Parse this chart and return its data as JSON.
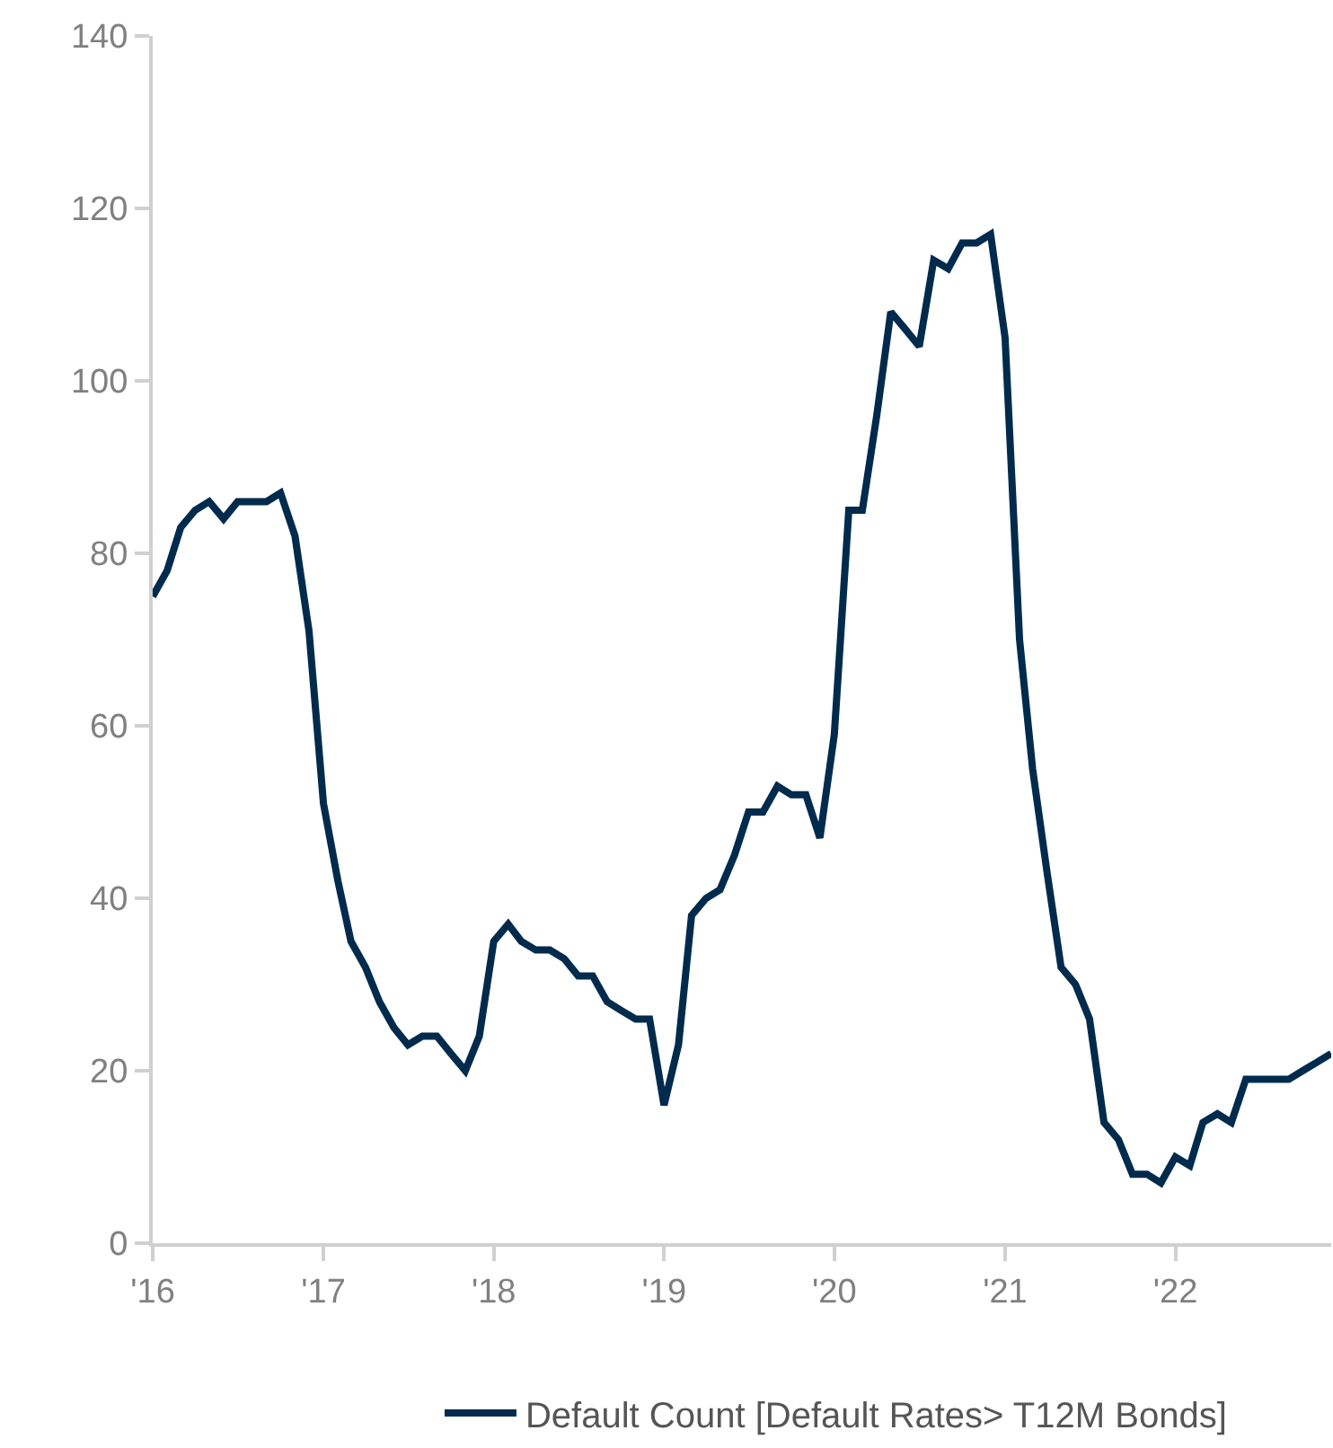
{
  "chart_data": {
    "type": "line",
    "x": [
      "2016-01",
      "2016-02",
      "2016-03",
      "2016-04",
      "2016-05",
      "2016-06",
      "2016-07",
      "2016-08",
      "2016-09",
      "2016-10",
      "2016-11",
      "2016-12",
      "2017-01",
      "2017-02",
      "2017-03",
      "2017-04",
      "2017-05",
      "2017-06",
      "2017-07",
      "2017-08",
      "2017-09",
      "2017-10",
      "2017-11",
      "2017-12",
      "2018-01",
      "2018-02",
      "2018-03",
      "2018-04",
      "2018-05",
      "2018-06",
      "2018-07",
      "2018-08",
      "2018-09",
      "2018-10",
      "2018-11",
      "2018-12",
      "2019-01",
      "2019-02",
      "2019-03",
      "2019-04",
      "2019-05",
      "2019-06",
      "2019-07",
      "2019-08",
      "2019-09",
      "2019-10",
      "2019-11",
      "2019-12",
      "2020-01",
      "2020-02",
      "2020-03",
      "2020-04",
      "2020-05",
      "2020-06",
      "2020-07",
      "2020-08",
      "2020-09",
      "2020-10",
      "2020-11",
      "2020-12",
      "2021-01",
      "2021-02",
      "2021-03",
      "2021-04",
      "2021-05",
      "2021-06",
      "2021-07",
      "2021-08",
      "2021-09",
      "2021-10",
      "2021-11",
      "2021-12",
      "2022-01",
      "2022-02",
      "2022-03",
      "2022-04",
      "2022-05",
      "2022-06",
      "2022-07",
      "2022-08",
      "2022-09",
      "2022-10",
      "2022-11",
      "2022-12"
    ],
    "series": [
      {
        "name": "Default Count [Default Rates> T12M Bonds]",
        "color": "#002b4d",
        "values": [
          75,
          78,
          83,
          85,
          86,
          84,
          86,
          86,
          86,
          87,
          82,
          71,
          51,
          42,
          35,
          32,
          28,
          25,
          23,
          24,
          24,
          22,
          20,
          24,
          35,
          37,
          35,
          34,
          34,
          33,
          31,
          31,
          28,
          27,
          26,
          26,
          16,
          23,
          38,
          40,
          41,
          45,
          50,
          50,
          53,
          52,
          52,
          47,
          59,
          85,
          85,
          96,
          108,
          106,
          104,
          114,
          113,
          116,
          116,
          117,
          105,
          70,
          55,
          43,
          32,
          30,
          26,
          14,
          12,
          8,
          8,
          7,
          10,
          9,
          14,
          15,
          14,
          19,
          19,
          19,
          19,
          20,
          21,
          22
        ]
      }
    ],
    "xlim": [
      "2016-01",
      "2022-12"
    ],
    "xticks": [
      {
        "value": "2016-01",
        "label": "'16"
      },
      {
        "value": "2017-01",
        "label": "'17"
      },
      {
        "value": "2018-01",
        "label": "'18"
      },
      {
        "value": "2019-01",
        "label": "'19"
      },
      {
        "value": "2020-01",
        "label": "'20"
      },
      {
        "value": "2021-01",
        "label": "'21"
      },
      {
        "value": "2022-01",
        "label": "'22"
      }
    ],
    "ylim": [
      0,
      140
    ],
    "yticks": [
      0,
      20,
      40,
      60,
      80,
      100,
      120,
      140
    ],
    "legend": "bottom",
    "marker": "none",
    "line_style": "solid"
  }
}
